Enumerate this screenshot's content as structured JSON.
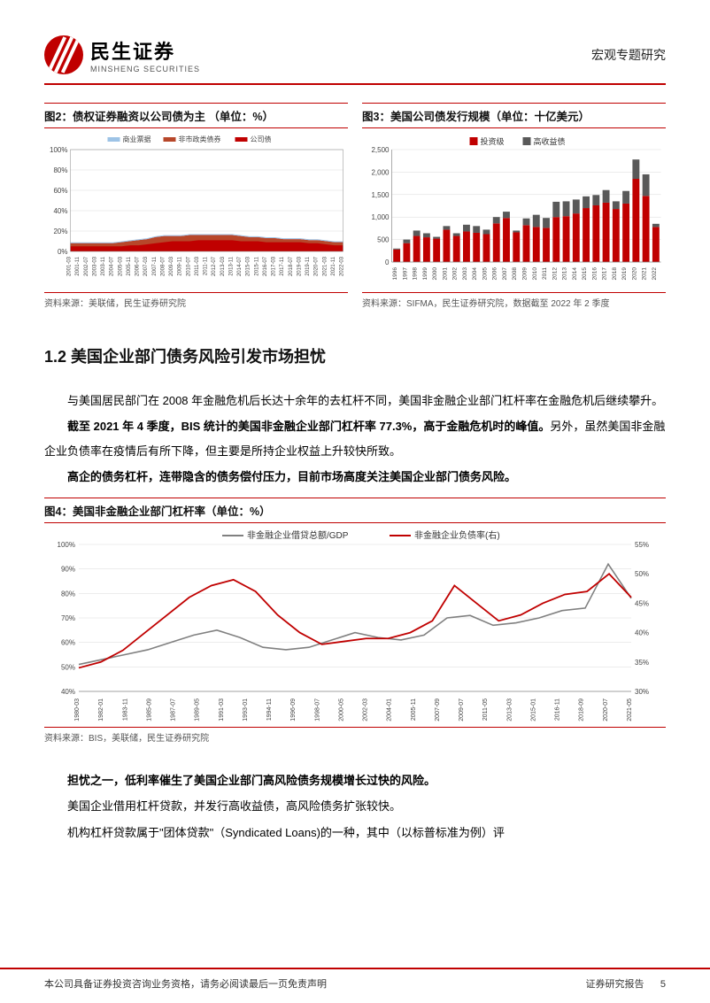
{
  "brand": {
    "cn": "民生证券",
    "en": "MINSHENG SECURITIES",
    "accent": "#c00000"
  },
  "header_right": "宏观专题研究",
  "chart2": {
    "title": "图2：债权证券融资以公司债为主   （单位：%）",
    "type": "area",
    "source": "资料来源：美联储，民生证券研究院",
    "legend": [
      {
        "label": "商业票据",
        "color": "#9dc3e6"
      },
      {
        "label": "非市政类债券",
        "color": "#b7472a"
      },
      {
        "label": "公司债",
        "color": "#c00000"
      }
    ],
    "ylim": [
      0,
      100
    ],
    "ytick_step": 20,
    "y_suffix": "%",
    "x_labels": [
      "2001-03",
      "2001-11",
      "2002-07",
      "2003-03",
      "2003-11",
      "2004-07",
      "2005-03",
      "2005-11",
      "2006-07",
      "2007-03",
      "2007-11",
      "2008-07",
      "2009-03",
      "2009-11",
      "2010-07",
      "2011-03",
      "2011-11",
      "2012-07",
      "2013-03",
      "2013-11",
      "2014-07",
      "2015-03",
      "2015-11",
      "2016-07",
      "2017-03",
      "2017-11",
      "2018-07",
      "2019-03",
      "2019-11",
      "2020-07",
      "2021-03",
      "2021-11",
      "2022-03"
    ],
    "series_top": [
      8,
      8,
      8,
      8,
      8,
      8,
      9,
      10,
      11,
      12,
      14,
      15,
      15,
      15,
      16,
      16,
      16,
      16,
      16,
      16,
      15,
      14,
      14,
      13,
      13,
      12,
      12,
      12,
      11,
      11,
      10,
      9,
      9
    ],
    "series_mid": [
      5,
      5,
      5,
      5,
      5,
      5,
      5,
      6,
      6,
      7,
      8,
      9,
      10,
      10,
      10,
      11,
      11,
      11,
      11,
      11,
      10,
      10,
      10,
      9,
      9,
      9,
      9,
      9,
      8,
      8,
      7,
      6,
      6
    ],
    "background": "#ffffff",
    "grid_color": "#d9d9d9"
  },
  "chart3": {
    "title": "图3：美国公司债发行规模（单位：十亿美元）",
    "type": "stacked-bar",
    "source": "资料来源：SIFMA，民生证券研究院，数据截至 2022 年 2 季度",
    "legend": [
      {
        "label": "投资级",
        "color": "#c00000"
      },
      {
        "label": "高收益债",
        "color": "#595959"
      }
    ],
    "ylim": [
      0,
      2500
    ],
    "ytick_step": 500,
    "x_labels": [
      "1996",
      "1997",
      "1998",
      "1999",
      "2000",
      "2001",
      "2002",
      "2003",
      "2004",
      "2005",
      "2006",
      "2007",
      "2008",
      "2009",
      "2010",
      "2011",
      "2012",
      "2013",
      "2014",
      "2015",
      "2016",
      "2017",
      "2018",
      "2019",
      "2020",
      "2021",
      "2022"
    ],
    "inv": [
      280,
      420,
      580,
      550,
      520,
      720,
      580,
      680,
      650,
      620,
      860,
      980,
      660,
      820,
      780,
      760,
      1000,
      1020,
      1080,
      1200,
      1260,
      1320,
      1180,
      1300,
      1850,
      1470,
      780
    ],
    "hy": [
      20,
      80,
      120,
      90,
      40,
      80,
      60,
      150,
      150,
      100,
      140,
      140,
      40,
      150,
      270,
      220,
      340,
      330,
      310,
      260,
      230,
      280,
      170,
      280,
      430,
      480,
      70
    ],
    "background": "#ffffff",
    "grid_color": "#d9d9d9"
  },
  "section_heading": "1.2 美国企业部门债务风险引发市场担忧",
  "para1": "与美国居民部门在 2008 年金融危机后长达十余年的去杠杆不同，美国非金融企业部门杠杆率在金融危机后继续攀升。",
  "para2a": "截至 2021 年 4 季度，BIS 统计的美国非金融企业部门杠杆率 77.3%，高于金融危机时的峰值。",
  "para2b": "另外，虽然美国非金融企业负债率在疫情后有所下降，但主要是所持企业权益上升较快所致。",
  "para3": "高企的债务杠杆，连带隐含的债务偿付压力，目前市场高度关注美国企业部门债务风险。",
  "chart4": {
    "title": "图4：美国非金融企业部门杠杆率（单位：%）",
    "type": "line-dual-axis",
    "source": "资料来源：BIS，美联储，民生证券研究院",
    "legend": [
      {
        "label": "非金融企业借贷总额/GDP",
        "color": "#808080"
      },
      {
        "label": "非金融企业负债率(右)",
        "color": "#c00000"
      }
    ],
    "left": {
      "ylim": [
        40,
        100
      ],
      "ytick_step": 10,
      "suffix": "%"
    },
    "right": {
      "ylim": [
        30,
        55
      ],
      "ytick_step": 5,
      "suffix": "%"
    },
    "x_labels": [
      "1980-03",
      "1982-01",
      "1983-11",
      "1985-09",
      "1987-07",
      "1989-05",
      "1991-03",
      "1993-01",
      "1994-11",
      "1996-09",
      "1998-07",
      "2000-05",
      "2002-03",
      "2004-01",
      "2005-11",
      "2007-09",
      "2009-07",
      "2011-05",
      "2013-03",
      "2015-01",
      "2016-11",
      "2018-09",
      "2020-07",
      "2021-05"
    ],
    "grey": [
      51,
      53,
      55,
      57,
      60,
      63,
      65,
      62,
      58,
      57,
      58,
      61,
      64,
      62,
      61,
      63,
      70,
      71,
      67,
      68,
      70,
      73,
      74,
      92,
      78
    ],
    "red": [
      34,
      35,
      37,
      40,
      43,
      46,
      48,
      49,
      47,
      43,
      40,
      38,
      38.5,
      39,
      39,
      40,
      42,
      48,
      45,
      42,
      43,
      45,
      46.5,
      47,
      50,
      46
    ],
    "grid_color": "#d9d9d9"
  },
  "para4": "担忧之一，低利率催生了美国企业部门高风险债务规模增长过快的风险。",
  "para5": "美国企业借用杠杆贷款，并发行高收益债，高风险债务扩张较快。",
  "para6": "机构杠杆贷款属于\"团体贷款\"（Syndicated Loans)的一种，其中（以标普标准为例）评",
  "footer_left": "本公司具备证券投资咨询业务资格，请务必阅读最后一页免责声明",
  "footer_right": "证券研究报告",
  "page_number": "5"
}
